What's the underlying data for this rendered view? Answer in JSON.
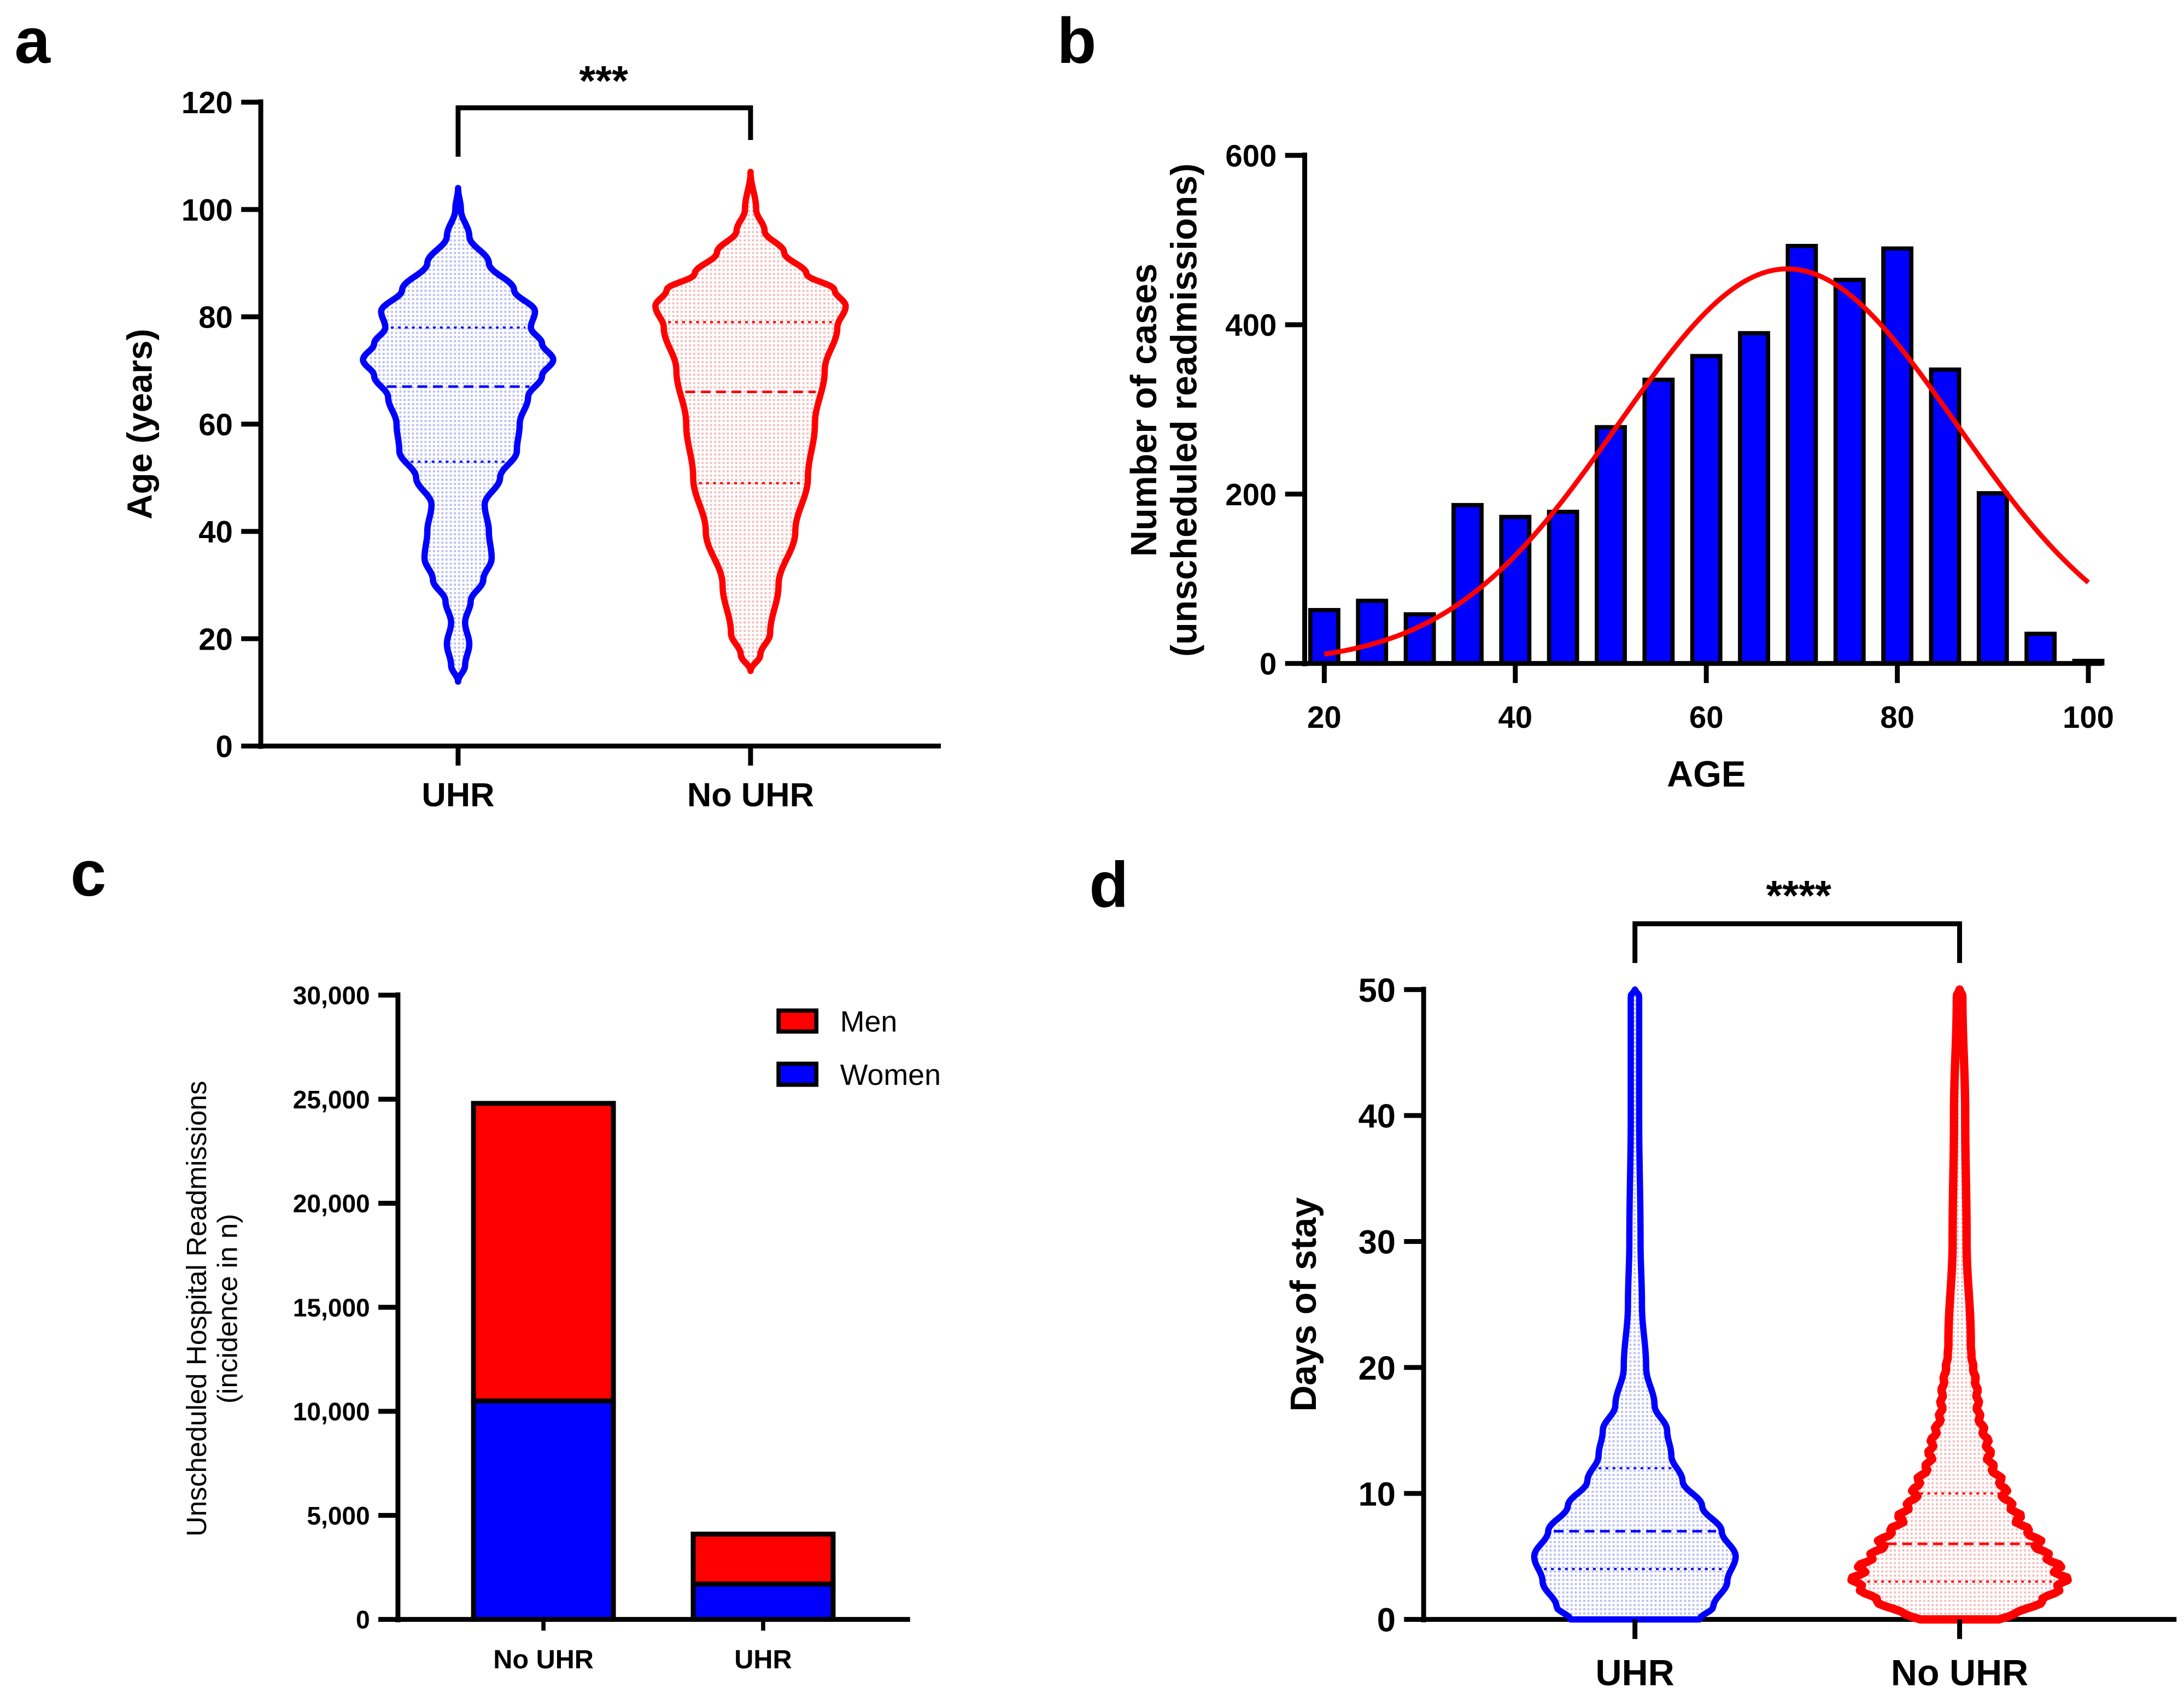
{
  "colors": {
    "blue": "#0000ff",
    "red": "#ff0000",
    "blue_fill": "#dfe1fb",
    "red_fill": "#fbe0e0"
  },
  "chart_data": [
    {
      "panel": "a",
      "type": "violin",
      "ylabel": "Age (years)",
      "ylim": [
        0,
        120
      ],
      "yticks": [
        0,
        20,
        40,
        60,
        80,
        100,
        120
      ],
      "categories": [
        "UHR",
        "No UHR"
      ],
      "series": [
        {
          "name": "UHR",
          "color": "#0000ff",
          "min": 12,
          "max": 104,
          "q1": 53,
          "median": 67,
          "q3": 78
        },
        {
          "name": "No UHR",
          "color": "#ff0000",
          "min": 14,
          "max": 107,
          "q1": 49,
          "median": 66,
          "q3": 79
        }
      ],
      "significance": "***"
    },
    {
      "panel": "b",
      "type": "bar",
      "xlabel": "AGE",
      "ylabel": [
        "Number of cases",
        "(unscheduled readmissions)"
      ],
      "xlim": [
        20,
        100
      ],
      "ylim": [
        0,
        600
      ],
      "xticks": [
        20,
        40,
        60,
        80,
        100
      ],
      "yticks": [
        0,
        200,
        400,
        600
      ],
      "x": [
        20,
        25,
        30,
        35,
        40,
        45,
        50,
        55,
        60,
        65,
        70,
        75,
        80,
        85,
        90,
        95,
        100
      ],
      "values": [
        63,
        74,
        58,
        187,
        173,
        179,
        279,
        335,
        363,
        390,
        493,
        453,
        490,
        347,
        201,
        35,
        3
      ],
      "fit": {
        "type": "gaussian",
        "mean": 68.5,
        "sd": 17.7,
        "amplitude": 466,
        "color": "#ff0000"
      }
    },
    {
      "panel": "c",
      "type": "stacked-bar",
      "ylabel": [
        "Unscheduled Hospital Readmissions",
        "(incidence in n)"
      ],
      "ylim": [
        0,
        30000
      ],
      "yticks": [
        "0",
        "5,000",
        "10,000",
        "15,000",
        "20,000",
        "25,000",
        "30,000"
      ],
      "ytick_values": [
        0,
        5000,
        10000,
        15000,
        20000,
        25000,
        30000
      ],
      "categories": [
        "No UHR",
        "UHR"
      ],
      "series": [
        {
          "name": "Women",
          "color": "#0000ff",
          "values": [
            10500,
            1700
          ]
        },
        {
          "name": "Men",
          "color": "#ff0000",
          "values": [
            14300,
            2400
          ]
        }
      ],
      "legend": [
        "Men",
        "Women"
      ],
      "legend_position": "top-right"
    },
    {
      "panel": "d",
      "type": "violin",
      "ylabel": "Days of stay",
      "ylim": [
        0,
        50
      ],
      "yticks": [
        0,
        10,
        20,
        30,
        40,
        50
      ],
      "categories": [
        "UHR",
        "No UHR"
      ],
      "series": [
        {
          "name": "UHR",
          "color": "#0000ff",
          "min": 0,
          "max": 50,
          "q1": 4,
          "median": 7,
          "q3": 12
        },
        {
          "name": "No UHR",
          "color": "#ff0000",
          "min": 0,
          "max": 50,
          "q1": 3,
          "median": 6,
          "q3": 10
        }
      ],
      "significance": "****"
    }
  ],
  "panel_labels": [
    "a",
    "b",
    "c",
    "d"
  ]
}
